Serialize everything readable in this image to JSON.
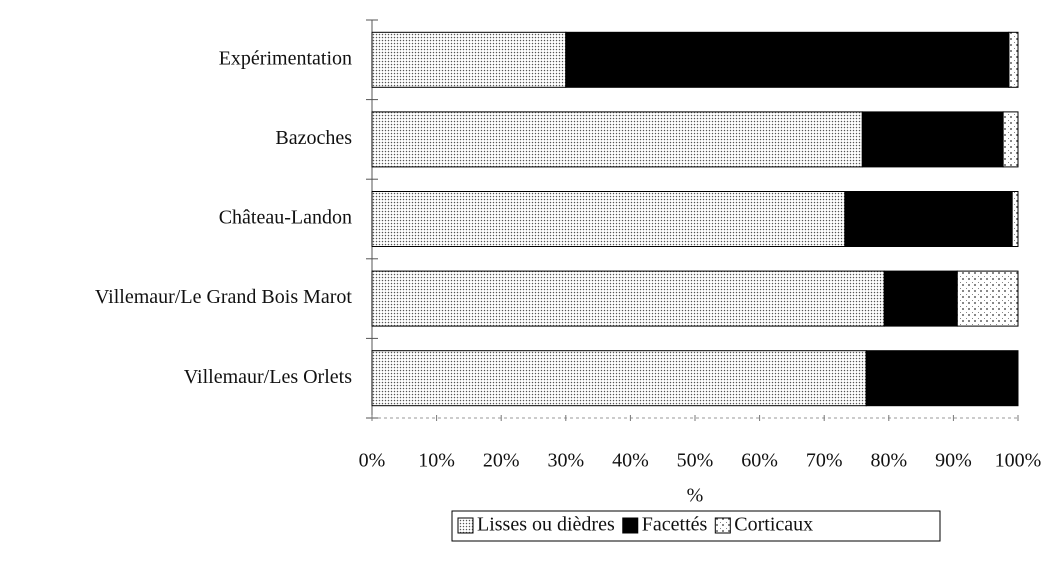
{
  "chart_data": {
    "type": "stacked-barh",
    "xlabel": "%",
    "categories": [
      "Expérimentation",
      "Bazoches",
      "Château-Landon",
      "Villemaur/Le Grand Bois Marot",
      "Villemaur/Les Orlets"
    ],
    "series": [
      {
        "name": "Lisses ou dièdres",
        "color": "#555555",
        "pattern": "dense-dots",
        "values": [
          30.0,
          75.9,
          73.2,
          79.3,
          76.5
        ]
      },
      {
        "name": "Facettés",
        "color": "#000000",
        "pattern": "solid",
        "values": [
          68.6,
          21.8,
          25.9,
          11.3,
          23.5
        ]
      },
      {
        "name": "Corticaux",
        "color": "#333333",
        "pattern": "sparse-dots",
        "values": [
          1.4,
          2.3,
          0.9,
          9.4,
          0
        ]
      }
    ],
    "xlim": [
      0,
      100
    ],
    "xticks": [
      {
        "value": 0,
        "label": "0%"
      },
      {
        "value": 10,
        "label": "10%"
      },
      {
        "value": 20,
        "label": "20%"
      },
      {
        "value": 30,
        "label": "30%"
      },
      {
        "value": 40,
        "label": "40%"
      },
      {
        "value": 50,
        "label": "50%"
      },
      {
        "value": 60,
        "label": "60%"
      },
      {
        "value": 70,
        "label": "70%"
      },
      {
        "value": 80,
        "label": "80%"
      },
      {
        "value": 90,
        "label": "90%"
      },
      {
        "value": 100,
        "label": "100%"
      }
    ],
    "legend": "bottom"
  }
}
